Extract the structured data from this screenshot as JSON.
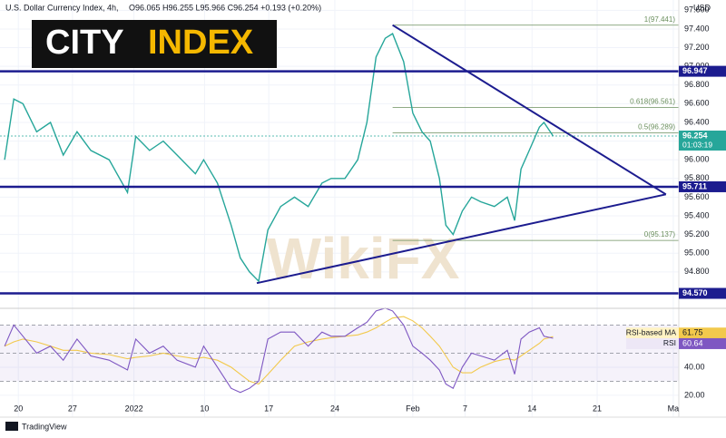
{
  "chart_data": {
    "type": "line",
    "title": "U.S. Dollar Currency Index, 4h,",
    "ohlc_text": "O96.065 H96.255 L95.966 C96.254 +0.193 (+0.20%)",
    "currency": "USD",
    "logo_words": [
      "CITY",
      "INDEX"
    ],
    "watermark": "WikiFX",
    "footer": "TradingView",
    "grid": true,
    "xlim": [
      -2,
      72
    ],
    "xticks": [
      {
        "value": 0,
        "label": "20"
      },
      {
        "value": 5.9,
        "label": "27"
      },
      {
        "value": 12.6,
        "label": "2022"
      },
      {
        "value": 20.3,
        "label": "10"
      },
      {
        "value": 27.3,
        "label": "17"
      },
      {
        "value": 34.5,
        "label": "24"
      },
      {
        "value": 43,
        "label": "Feb"
      },
      {
        "value": 48.7,
        "label": "7"
      },
      {
        "value": 56,
        "label": "14"
      },
      {
        "value": 63.1,
        "label": "21"
      },
      {
        "value": 71.4,
        "label": "Ma"
      }
    ],
    "ylim": [
      94.41,
      97.71
    ],
    "yticks": [
      {
        "value": 94.8,
        "label": "94.800"
      },
      {
        "value": 95.0,
        "label": "95.000"
      },
      {
        "value": 95.2,
        "label": "95.200"
      },
      {
        "value": 95.4,
        "label": "95.400"
      },
      {
        "value": 95.6,
        "label": "95.600"
      },
      {
        "value": 95.8,
        "label": "95.800"
      },
      {
        "value": 96.0,
        "label": "96.000"
      },
      {
        "value": 96.2,
        "label": "96.200"
      },
      {
        "value": 96.4,
        "label": "96.400"
      },
      {
        "value": 96.6,
        "label": "96.600"
      },
      {
        "value": 96.8,
        "label": "96.800"
      },
      {
        "value": 97.0,
        "label": "97.000"
      },
      {
        "value": 97.2,
        "label": "97.200"
      },
      {
        "value": 97.4,
        "label": "97.400"
      },
      {
        "value": 97.6,
        "label": "97.600"
      }
    ],
    "x": [
      -1.5,
      -0.5,
      0.5,
      2.0,
      3.5,
      4.9,
      6.4,
      7.9,
      9.9,
      11.9,
      12.8,
      14.3,
      15.8,
      17.3,
      19.3,
      20.2,
      21.7,
      23.2,
      24.2,
      25.2,
      26.2,
      27.2,
      28.6,
      30.1,
      31.6,
      33.1,
      34.1,
      35.6,
      37.0,
      38.0,
      39.0,
      40.0,
      40.8,
      42.0,
      43.0,
      44.0,
      44.9,
      45.9,
      46.6,
      47.4,
      48.4,
      49.4,
      50.4,
      51.9,
      53.3,
      54.1,
      54.8,
      55.7,
      56.8,
      57.3,
      58.3
    ],
    "series": [
      {
        "color": "#26a69a",
        "values": [
          96.0,
          96.65,
          96.6,
          96.3,
          96.4,
          96.05,
          96.3,
          96.1,
          96.0,
          95.65,
          96.25,
          96.1,
          96.2,
          96.05,
          95.85,
          96.0,
          95.75,
          95.3,
          94.95,
          94.8,
          94.7,
          95.25,
          95.5,
          95.6,
          95.5,
          95.75,
          95.8,
          95.8,
          96.0,
          96.4,
          97.1,
          97.3,
          97.35,
          97.05,
          96.5,
          96.3,
          96.2,
          95.8,
          95.3,
          95.2,
          95.45,
          95.6,
          95.55,
          95.5,
          95.6,
          95.35,
          95.9,
          96.1,
          96.35,
          96.4,
          96.254
        ]
      }
    ],
    "last_price": {
      "value": 96.254,
      "countdown": "01:03:19",
      "color": "#26a69a"
    },
    "level_color": "#1c1c8f",
    "levels": [
      {
        "value": 96.947
      },
      {
        "value": 95.711
      },
      {
        "value": 94.57,
        "label": "94.570"
      }
    ],
    "fib_color": "#6b8f5e",
    "fib_levels": [
      {
        "value": 97.441,
        "label": "1(97.441)"
      },
      {
        "value": 96.561,
        "label": "0.618(96.561)"
      },
      {
        "value": 96.289,
        "label": "0.5(96.289)"
      },
      {
        "value": 95.137,
        "label": "0(95.137)"
      }
    ],
    "fib_start_x": 40.8,
    "trendlines": [
      {
        "x": [
          40.8,
          70.6
        ],
        "y": [
          97.441,
          95.63
        ]
      },
      {
        "x": [
          26.0,
          70.6
        ],
        "y": [
          94.68,
          95.63
        ]
      }
    ],
    "rsi": {
      "ylim": [
        7.7,
        81.9
      ],
      "yticks": [
        {
          "value": 40,
          "label": "40.00"
        },
        {
          "value": 20,
          "label": "20.00"
        }
      ],
      "bands": [
        70,
        50,
        30
      ],
      "series": [
        {
          "name": "RSI-based MA",
          "color": "#f2c94c",
          "last": 61.75,
          "values": [
            55,
            58,
            60,
            58,
            55,
            52,
            52,
            50,
            49,
            46,
            47,
            48,
            50,
            48,
            46,
            47,
            45,
            40,
            35,
            30,
            28,
            35,
            45,
            55,
            58,
            60,
            61,
            62,
            63,
            65,
            68,
            72,
            75,
            76,
            73,
            68,
            62,
            55,
            48,
            40,
            36,
            36,
            40,
            44,
            46,
            45,
            48,
            52,
            57,
            60,
            61.75
          ]
        },
        {
          "name": "RSI",
          "color": "#7e57c2",
          "last": 60.64,
          "values": [
            55,
            70,
            62,
            50,
            55,
            45,
            60,
            48,
            45,
            38,
            60,
            50,
            55,
            45,
            40,
            55,
            40,
            25,
            22,
            25,
            30,
            60,
            65,
            65,
            55,
            65,
            62,
            62,
            68,
            72,
            80,
            82,
            80,
            70,
            55,
            50,
            45,
            38,
            28,
            25,
            40,
            50,
            48,
            45,
            52,
            35,
            60,
            65,
            68,
            62,
            60.64
          ]
        }
      ]
    }
  }
}
